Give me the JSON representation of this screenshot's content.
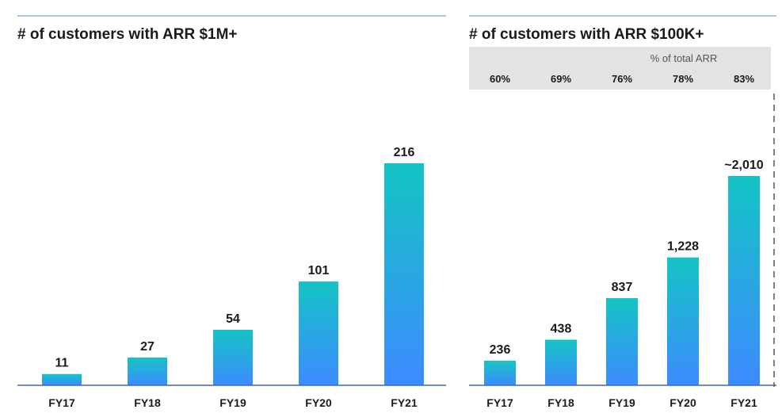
{
  "colors": {
    "bar_top": "#14C4C4",
    "bar_bottom": "#3D8BFF",
    "rule": "#7FB7E6",
    "axis": "#3A6EA5",
    "header_band": "#E3E3E3",
    "dashed_line": "#808080"
  },
  "chart_data": [
    {
      "type": "bar",
      "title": "# of customers with ARR $1M+",
      "categories": [
        "FY17",
        "FY18",
        "FY19",
        "FY20",
        "FY21"
      ],
      "values": [
        11,
        27,
        54,
        101,
        216
      ],
      "value_labels": [
        "11",
        "27",
        "54",
        "101",
        "216"
      ],
      "ylim": [
        0,
        216
      ],
      "grid": false
    },
    {
      "type": "bar",
      "title": "# of customers with ARR $100K+",
      "categories": [
        "FY17",
        "FY18",
        "FY19",
        "FY20",
        "FY21"
      ],
      "values": [
        236,
        438,
        837,
        1228,
        2010
      ],
      "value_labels": [
        "236",
        "438",
        "837",
        "1,228",
        "~2,010"
      ],
      "ylim": [
        0,
        2010
      ],
      "grid": false,
      "header": {
        "label": "% of total ARR",
        "values": [
          "60%",
          "69%",
          "76%",
          "78%",
          "83%"
        ]
      }
    }
  ]
}
